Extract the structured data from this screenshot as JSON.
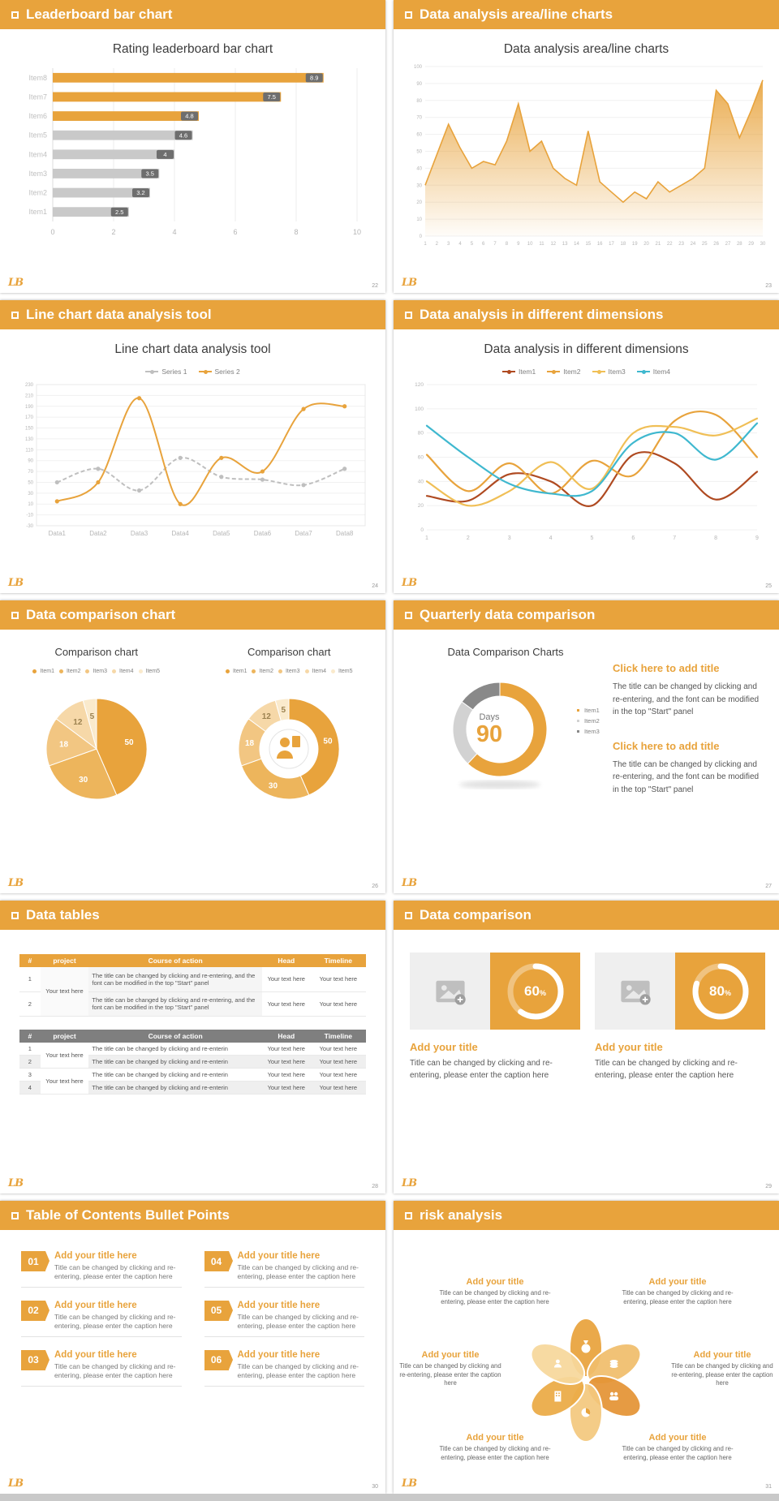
{
  "branding": {
    "logo_text": "LB",
    "accent": "#E8A33C"
  },
  "slide1": {
    "header": "Leaderboard bar chart",
    "title": "Rating leaderboard bar chart",
    "page": "22",
    "chart_data": {
      "type": "bar",
      "orientation": "horizontal",
      "categories": [
        "Item1",
        "Item2",
        "Item3",
        "Item4",
        "Item5",
        "Item6",
        "Item7",
        "Item8"
      ],
      "values": [
        2.5,
        3.2,
        3.5,
        4,
        4.6,
        4.8,
        7.5,
        8.9
      ],
      "colors": [
        "#C9C9C9",
        "#C9C9C9",
        "#C9C9C9",
        "#C9C9C9",
        "#C9C9C9",
        "#E8A33C",
        "#E8A33C",
        "#E8A33C"
      ],
      "xticks": [
        0,
        2,
        4,
        6,
        8,
        10
      ],
      "xlim": [
        0,
        10
      ]
    }
  },
  "slide2": {
    "header": "Data analysis area/line charts",
    "title": "Data analysis area/line charts",
    "page": "23",
    "chart_data": {
      "type": "area",
      "x": [
        1,
        2,
        3,
        4,
        5,
        6,
        7,
        8,
        9,
        10,
        11,
        12,
        13,
        14,
        15,
        16,
        17,
        18,
        19,
        20,
        21,
        22,
        23,
        24,
        25,
        26,
        27,
        28,
        29,
        30
      ],
      "values": [
        30,
        48,
        66,
        52,
        40,
        44,
        42,
        56,
        78,
        50,
        56,
        40,
        34,
        30,
        62,
        32,
        26,
        20,
        26,
        22,
        32,
        26,
        30,
        34,
        40,
        86,
        78,
        58,
        74,
        92
      ],
      "ylim": [
        0,
        100
      ],
      "ytick_step": 10,
      "color": "#E8A33C"
    }
  },
  "slide3": {
    "header": "Line chart data analysis tool",
    "title": "Line chart data analysis tool",
    "page": "24",
    "chart_data": {
      "type": "line",
      "categories": [
        "Data1",
        "Data2",
        "Data3",
        "Data4",
        "Data5",
        "Data6",
        "Data7",
        "Data8"
      ],
      "series": [
        {
          "name": "Series 1",
          "color": "#BFBFBF",
          "dashed": true,
          "values": [
            50,
            75,
            35,
            95,
            60,
            55,
            45,
            75
          ]
        },
        {
          "name": "Series 2",
          "color": "#E8A33C",
          "dashed": false,
          "values": [
            15,
            50,
            205,
            10,
            95,
            70,
            185,
            190
          ]
        }
      ],
      "ylim": [
        -30,
        230
      ],
      "ytick_step": 20
    }
  },
  "slide4": {
    "header": "Data analysis in different dimensions",
    "title": "Data analysis in different dimensions",
    "page": "25",
    "chart_data": {
      "type": "line",
      "x": [
        1,
        2,
        3,
        4,
        5,
        6,
        7,
        8,
        9
      ],
      "series": [
        {
          "name": "Item1",
          "color": "#AF4A21",
          "values": [
            28,
            24,
            46,
            40,
            20,
            62,
            55,
            25,
            48
          ]
        },
        {
          "name": "Item2",
          "color": "#E8A33C",
          "values": [
            62,
            32,
            55,
            30,
            57,
            45,
            90,
            95,
            60
          ]
        },
        {
          "name": "Item3",
          "color": "#F0BF56",
          "values": [
            40,
            20,
            32,
            56,
            34,
            80,
            85,
            78,
            92
          ]
        },
        {
          "name": "Item4",
          "color": "#3FB8CF",
          "values": [
            86,
            60,
            38,
            30,
            32,
            72,
            80,
            58,
            88
          ]
        }
      ],
      "ylim": [
        0,
        120
      ],
      "ytick_step": 20
    }
  },
  "slide5": {
    "header": "Data comparison chart",
    "page": "26",
    "chart_data": [
      {
        "type": "pie",
        "title": "Comparison chart",
        "labels": [
          "Item1",
          "Item2",
          "Item3",
          "Item4",
          "Item5"
        ],
        "values": [
          50,
          30,
          18,
          12,
          5
        ],
        "colors": [
          "#E8A33C",
          "#EDB55C",
          "#F2C682",
          "#F6D8A8",
          "#FAEACC"
        ]
      },
      {
        "type": "donut",
        "title": "Comparison chart",
        "labels": [
          "Item1",
          "Item2",
          "Item3",
          "Item4",
          "Item5"
        ],
        "values": [
          50,
          30,
          18,
          12,
          5
        ],
        "colors": [
          "#E8A33C",
          "#EDB55C",
          "#F2C682",
          "#F6D8A8",
          "#FAEACC"
        ]
      }
    ]
  },
  "slide6": {
    "header": "Quarterly data comparison",
    "title": "Data Comparison Charts",
    "page": "27",
    "chart_data": {
      "type": "donut",
      "center_label": "Days",
      "center_value": "90",
      "segments": [
        {
          "label": "Item1",
          "value": 62,
          "color": "#E8A33C"
        },
        {
          "label": "Item2",
          "value": 23,
          "color": "#D2D2D2"
        },
        {
          "label": "Item3",
          "value": 15,
          "color": "#898989"
        }
      ]
    },
    "blocks": [
      {
        "title": "Click here to add title",
        "body": "The title can be changed by clicking and re-entering, and the font can be modified in the top \"Start\" panel"
      },
      {
        "title": "Click here to add title",
        "body": "The title can be changed by clicking and re-entering, and the font can be modified in the top \"Start\" panel"
      }
    ]
  },
  "slide7": {
    "header": "Data tables",
    "page": "28",
    "table1": {
      "headers": [
        "#",
        "project",
        "Course of action",
        "Head",
        "Timeline"
      ],
      "project_merged": "Your text here",
      "rows": [
        {
          "num": "1",
          "action": "The title can be changed by clicking and re-entering, and the font can be modified in the top \"Start\" panel",
          "head": "Your text here",
          "timeline": "Your text here"
        },
        {
          "num": "2",
          "action": "The title can be changed by clicking and re-entering, and the font can be modified in the top \"Start\" panel",
          "head": "Your text here",
          "timeline": "Your text here"
        }
      ]
    },
    "table2": {
      "headers": [
        "#",
        "project",
        "Course of action",
        "Head",
        "Timeline"
      ],
      "project_groups": [
        "Your text here",
        "Your text here"
      ],
      "rows": [
        {
          "num": "1",
          "action": "The title can be changed by clicking and re-enterin",
          "head": "Your text here",
          "timeline": "Your text here"
        },
        {
          "num": "2",
          "action": "The title can be changed by clicking and re-enterin",
          "head": "Your text here",
          "timeline": "Your text here"
        },
        {
          "num": "3",
          "action": "The title can be changed by clicking and re-enterin",
          "head": "Your text here",
          "timeline": "Your text here"
        },
        {
          "num": "4",
          "action": "The title can be changed by clicking and re-enterin",
          "head": "Your text here",
          "timeline": "Your text here"
        }
      ]
    }
  },
  "slide8": {
    "header": "Data comparison",
    "page": "29",
    "chart_data": {
      "type": "donut",
      "values": [
        60,
        80
      ],
      "unit": "%"
    },
    "cards": [
      {
        "percent": 60,
        "unit": "%",
        "title": "Add your title",
        "caption": "Title can be changed by clicking and re-entering, please enter the caption here"
      },
      {
        "percent": 80,
        "unit": "%",
        "title": "Add your title",
        "caption": "Title can be changed by clicking and re-entering, please enter the caption here"
      }
    ]
  },
  "slide9": {
    "header": "Table of Contents Bullet Points",
    "page": "30",
    "items": [
      {
        "num": "01",
        "title": "Add your title here",
        "caption": "Title can be changed by clicking and re-entering, please enter the caption here"
      },
      {
        "num": "02",
        "title": "Add your title here",
        "caption": "Title can be changed by clicking and re-entering, please enter the caption here"
      },
      {
        "num": "03",
        "title": "Add your title here",
        "caption": "Title can be changed by clicking and re-entering, please enter the caption here"
      },
      {
        "num": "04",
        "title": "Add your title here",
        "caption": "Title can be changed by clicking and re-entering, please enter the caption here"
      },
      {
        "num": "05",
        "title": "Add your title here",
        "caption": "Title can be changed by clicking and re-entering, please enter the caption here"
      },
      {
        "num": "06",
        "title": "Add your title here",
        "caption": "Title can be changed by clicking and re-entering, please enter the caption here"
      }
    ]
  },
  "slide10": {
    "header": "risk analysis",
    "page": "31",
    "items": [
      {
        "title": "Add your title",
        "caption": "Title can be changed by clicking and re-entering, please enter the caption here",
        "icon": "money-bag-icon"
      },
      {
        "title": "Add your title",
        "caption": "Title can be changed by clicking and re-entering, please enter the caption here",
        "icon": "coins-icon"
      },
      {
        "title": "Add your title",
        "caption": "Title can be changed by clicking and re-entering, please enter the caption here",
        "icon": "person-icon"
      },
      {
        "title": "Add your title",
        "caption": "Title can be changed by clicking and re-entering, please enter the caption here",
        "icon": "people-icon"
      },
      {
        "title": "Add your title",
        "caption": "Title can be changed by clicking and re-entering, please enter the caption here",
        "icon": "building-icon"
      },
      {
        "title": "Add your title",
        "caption": "Title can be changed by clicking and re-entering, please enter the caption here",
        "icon": "pie-chart-icon"
      }
    ]
  }
}
